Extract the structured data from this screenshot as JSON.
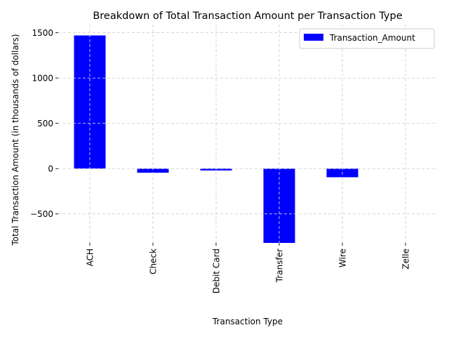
{
  "chart_data": {
    "type": "bar",
    "title": "Breakdown of Total Transaction Amount per Transaction Type",
    "xlabel": "Transaction Type",
    "ylabel": "Total Transaction Amount (in thousands of dollars)",
    "categories": [
      "ACH",
      "Check",
      "Debit Card",
      "Transfer",
      "Wire",
      "Zelle"
    ],
    "series": [
      {
        "name": "Transaction_Amount",
        "values": [
          1470,
          -45,
          -20,
          -820,
          -95,
          0
        ],
        "color": "#0000ff"
      }
    ],
    "ylim": [
      -820,
      1590
    ],
    "yticks": [
      -500,
      0,
      500,
      1000,
      1500
    ],
    "ytick_labels": [
      "−500",
      "0",
      "500",
      "1000",
      "1500"
    ],
    "grid": true,
    "legend_position": "top-right"
  }
}
